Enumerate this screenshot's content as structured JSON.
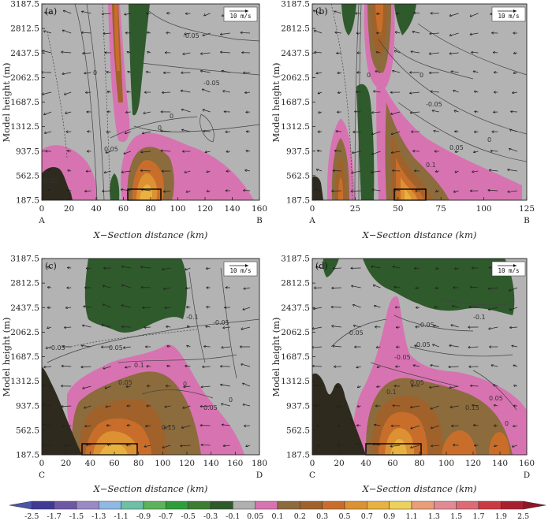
{
  "chart_data": {
    "type": "contour",
    "colorbar": {
      "levels": [
        "-2.5",
        "-1.7",
        "-1.5",
        "-1.3",
        "-1.1",
        "-0.9",
        "-0.7",
        "-0.5",
        "-0.3",
        "-0.1",
        "0.05",
        "0.1",
        "0.2",
        "0.3",
        "0.5",
        "0.7",
        "0.9",
        "1.1",
        "1.3",
        "1.5",
        "1.7",
        "1.9",
        "2.5"
      ],
      "colors": [
        "#4a55a8",
        "#3f3a95",
        "#6e58a6",
        "#9a8ac4",
        "#8fb8e3",
        "#6dbfa6",
        "#5cb35b",
        "#2e9e3a",
        "#3c7d34",
        "#2f5a2c",
        "#b0b0b0",
        "#d873b2",
        "#8c6b3c",
        "#a0622a",
        "#c96e2a",
        "#dc9232",
        "#e8b240",
        "#ecd15c",
        "#ea9e77",
        "#e28a93",
        "#dd6a74",
        "#cb3a43",
        "#a82030",
        "#8f1624"
      ]
    },
    "panels": [
      {
        "label": "(a)",
        "x_ticks": [
          "0",
          "20",
          "40",
          "60",
          "80",
          "100",
          "120",
          "140",
          "160"
        ],
        "x_range": [
          0,
          160
        ],
        "end_labels": [
          "A",
          "B"
        ],
        "y_ticks": [
          "187.5",
          "562.5",
          "937.5",
          "1312.5",
          "1687.5",
          "2062.5",
          "2437.5",
          "2812.5",
          "3187.5"
        ],
        "y_range": [
          187.5,
          3187.5
        ],
        "xlabel": "X−Section distance (km)",
        "ylabel": "Model height (m)",
        "vector_scale": "10 m/s",
        "contour_labels": [
          "-0.05",
          "0",
          "0.05",
          "0",
          "0.05",
          "0",
          "-0.05"
        ]
      },
      {
        "label": "(b)",
        "x_ticks": [
          "0",
          "25",
          "50",
          "75",
          "100",
          "125"
        ],
        "x_range": [
          0,
          125
        ],
        "end_labels": [
          "A",
          "B"
        ],
        "y_ticks": [
          "187.5",
          "562.5",
          "937.5",
          "1312.5",
          "1687.5",
          "2062.5",
          "2437.5",
          "2812.5",
          "3187.5"
        ],
        "y_range": [
          187.5,
          3187.5
        ],
        "xlabel": "X−Section distance (km)",
        "ylabel": "Model height (m)",
        "vector_scale": "10 m/s",
        "contour_labels": [
          "0",
          "-0.05",
          "0",
          "0.05",
          "0",
          "0.1"
        ]
      },
      {
        "label": "(c)",
        "x_ticks": [
          "0",
          "20",
          "40",
          "60",
          "80",
          "100",
          "120",
          "140",
          "160",
          "180"
        ],
        "x_range": [
          0,
          180
        ],
        "end_labels": [
          "C",
          "D"
        ],
        "y_ticks": [
          "187.5",
          "562.5",
          "937.5",
          "1312.5",
          "1687.5",
          "2062.5",
          "2437.5",
          "2812.5",
          "3187.5"
        ],
        "y_range": [
          187.5,
          3187.5
        ],
        "xlabel": "X−Section distance (km)",
        "ylabel": "Model height (m)",
        "vector_scale": "10 m/s",
        "contour_labels": [
          "-0.1",
          "-0.05",
          "-0.05",
          "0.05",
          "0.1",
          "0.05",
          "0",
          "0.15",
          "0.05",
          "0"
        ]
      },
      {
        "label": "(d)",
        "x_ticks": [
          "0",
          "20",
          "40",
          "60",
          "80",
          "100",
          "120",
          "140",
          "160"
        ],
        "x_range": [
          0,
          160
        ],
        "end_labels": [
          "C",
          "D"
        ],
        "y_ticks": [
          "187.5",
          "562.5",
          "937.5",
          "1312.5",
          "1687.5",
          "2062.5",
          "2437.5",
          "2812.5",
          "3187.5"
        ],
        "y_range": [
          187.5,
          3187.5
        ],
        "xlabel": "X−Section distance (km)",
        "ylabel": "Model height (m)",
        "vector_scale": "10 m/s",
        "contour_labels": [
          "-0.1",
          "-0.05",
          "-0.05",
          "-0.05",
          "-0.05",
          "0.05",
          "0.1",
          "0.15",
          "0.05",
          "0"
        ]
      }
    ]
  }
}
